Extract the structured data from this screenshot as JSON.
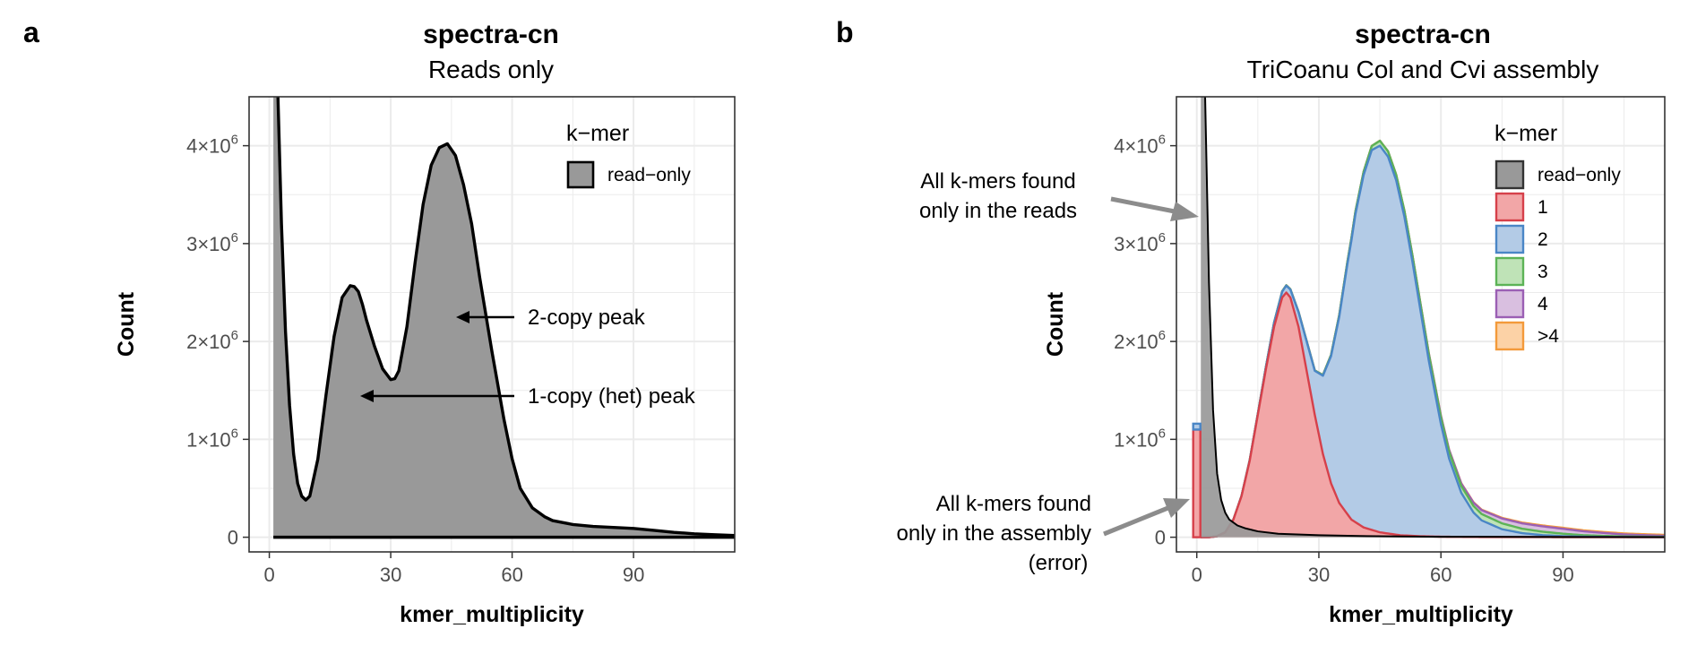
{
  "chart_data": [
    {
      "panel_letter": "a",
      "type": "area",
      "title": "spectra-cn",
      "subtitle": "Reads only",
      "xlabel": "kmer_multiplicity",
      "ylabel": "Count",
      "xlim": [
        -5,
        115
      ],
      "ylim": [
        -150000,
        4500000
      ],
      "x_ticks": [
        0,
        30,
        60,
        90
      ],
      "x_tick_labels": [
        "0",
        "30",
        "60",
        "90"
      ],
      "y_ticks": [
        0,
        1000000,
        2000000,
        3000000,
        4000000
      ],
      "y_tick_labels": [
        {
          "base": "0",
          "exp": ""
        },
        {
          "base": "1×10",
          "exp": "6"
        },
        {
          "base": "2×10",
          "exp": "6"
        },
        {
          "base": "3×10",
          "exp": "6"
        },
        {
          "base": "4×10",
          "exp": "6"
        }
      ],
      "grid": true,
      "legend": {
        "title": "k−mer",
        "position": "top-right",
        "entries": [
          {
            "label": "read−only",
            "color": "#999999"
          }
        ]
      },
      "series": [
        {
          "name": "read−only",
          "color": "#999999",
          "x": [
            1,
            2,
            3,
            4,
            5,
            6,
            7,
            8,
            9,
            10,
            12,
            14,
            16,
            18,
            20,
            21,
            22,
            23,
            24,
            26,
            28,
            30,
            31,
            32,
            34,
            36,
            38,
            40,
            42,
            44,
            46,
            48,
            50,
            52,
            55,
            58,
            60,
            62,
            65,
            68,
            70,
            75,
            80,
            85,
            90,
            95,
            100,
            105,
            110,
            115
          ],
          "values": [
            6000000,
            4700000,
            3200000,
            2100000,
            1350000,
            850000,
            550000,
            420000,
            380000,
            420000,
            800000,
            1450000,
            2050000,
            2450000,
            2570000,
            2560000,
            2510000,
            2380000,
            2220000,
            1950000,
            1720000,
            1610000,
            1620000,
            1700000,
            2150000,
            2800000,
            3400000,
            3800000,
            3980000,
            4020000,
            3900000,
            3600000,
            3200000,
            2650000,
            1900000,
            1200000,
            800000,
            500000,
            300000,
            210000,
            170000,
            130000,
            110000,
            100000,
            90000,
            70000,
            50000,
            35000,
            25000,
            18000
          ]
        }
      ],
      "annotations": [
        {
          "text": "2-copy peak",
          "x": 47,
          "y": 2250000
        },
        {
          "text": "1-copy (het) peak",
          "x": 23,
          "y": 1420000
        }
      ]
    },
    {
      "panel_letter": "b",
      "type": "area",
      "title": "spectra-cn",
      "subtitle": "TriCoanu Col and Cvi assembly",
      "xlabel": "kmer_multiplicity",
      "ylabel": "Count",
      "xlim": [
        -5,
        115
      ],
      "ylim": [
        -150000,
        4500000
      ],
      "x_ticks": [
        0,
        30,
        60,
        90
      ],
      "x_tick_labels": [
        "0",
        "30",
        "60",
        "90"
      ],
      "y_ticks": [
        0,
        1000000,
        2000000,
        3000000,
        4000000
      ],
      "y_tick_labels": [
        {
          "base": "0",
          "exp": ""
        },
        {
          "base": "1×10",
          "exp": "6"
        },
        {
          "base": "2×10",
          "exp": "6"
        },
        {
          "base": "3×10",
          "exp": "6"
        },
        {
          "base": "4×10",
          "exp": "6"
        }
      ],
      "grid": true,
      "legend": {
        "title": "k−mer",
        "position": "top-right",
        "entries": [
          {
            "label": "read−only",
            "fill": "#999999",
            "stroke": "#333333"
          },
          {
            "label": "1",
            "fill": "#f2a6a7",
            "stroke": "#d6404a"
          },
          {
            "label": "2",
            "fill": "#b3cbe6",
            "stroke": "#4a86c6"
          },
          {
            "label": "3",
            "fill": "#bfe3b7",
            "stroke": "#5cb356"
          },
          {
            "label": "4",
            "fill": "#d9bfe0",
            "stroke": "#9b5fb4"
          },
          {
            "label": ">4",
            "fill": "#fcd2a6",
            "stroke": "#f39a3a"
          }
        ]
      },
      "stack_order": [
        "read−only",
        "1",
        "2",
        "3",
        "4",
        ">4"
      ],
      "series": [
        {
          "name": "read−only",
          "color": "#999999",
          "x": [
            1,
            2,
            3,
            4,
            5,
            6,
            7,
            8,
            10,
            12,
            15,
            20,
            30,
            40,
            50,
            60,
            70,
            80,
            90,
            100,
            115
          ],
          "values": [
            6000000,
            4600000,
            2600000,
            1300000,
            650000,
            380000,
            250000,
            180000,
            120000,
            90000,
            60000,
            35000,
            20000,
            12000,
            8000,
            5000,
            4000,
            3000,
            2500,
            2000,
            1500
          ]
        },
        {
          "name": "1",
          "color": "#d6404a",
          "x": [
            1,
            3,
            5,
            7,
            9,
            11,
            13,
            15,
            17,
            19,
            21,
            22,
            23,
            25,
            27,
            29,
            31,
            33,
            35,
            38,
            41,
            45,
            50,
            55,
            60,
            70,
            80,
            90,
            100,
            115
          ],
          "values": [
            0,
            0,
            10000,
            50000,
            180000,
            420000,
            780000,
            1250000,
            1720000,
            2150000,
            2450000,
            2500000,
            2450000,
            2150000,
            1700000,
            1250000,
            850000,
            550000,
            350000,
            180000,
            100000,
            50000,
            20000,
            10000,
            5000,
            2000,
            1500,
            1000,
            500,
            200
          ]
        },
        {
          "name": "2",
          "color": "#4a86c6",
          "x": [
            1,
            5,
            10,
            15,
            17,
            19,
            21,
            22,
            23,
            25,
            27,
            29,
            31,
            33,
            35,
            37,
            39,
            41,
            43,
            45,
            47,
            49,
            51,
            53,
            55,
            57,
            60,
            62,
            65,
            68,
            70,
            75,
            80,
            85,
            90,
            95,
            100,
            105,
            110,
            115
          ],
          "values": [
            0,
            0,
            0,
            8000,
            20000,
            40000,
            60000,
            70000,
            80000,
            150000,
            300000,
            450000,
            800000,
            1300000,
            1900000,
            2550000,
            3150000,
            3600000,
            3880000,
            3950000,
            3850000,
            3620000,
            3260000,
            2800000,
            2300000,
            1800000,
            1150000,
            800000,
            450000,
            250000,
            170000,
            80000,
            40000,
            20000,
            10000,
            5000,
            3000,
            2000,
            1500,
            1000
          ]
        },
        {
          "name": "3",
          "color": "#5cb356",
          "x": [
            1,
            30,
            40,
            45,
            50,
            55,
            60,
            65,
            70,
            75,
            80,
            85,
            90,
            95,
            100,
            105,
            110,
            115
          ],
          "values": [
            0,
            5000,
            30000,
            50000,
            60000,
            65000,
            70000,
            70000,
            65000,
            60000,
            45000,
            35000,
            25000,
            15000,
            10000,
            6000,
            4000,
            3000
          ]
        },
        {
          "name": "4",
          "color": "#9b5fb4",
          "x": [
            1,
            50,
            55,
            60,
            65,
            70,
            75,
            80,
            85,
            90,
            95,
            100,
            105,
            110,
            115
          ],
          "values": [
            0,
            0,
            5000,
            15000,
            25000,
            40000,
            50000,
            55000,
            55000,
            50000,
            40000,
            30000,
            20000,
            15000,
            10000
          ]
        },
        {
          "name": ">4",
          "color": "#f39a3a",
          "x": [
            1,
            60,
            70,
            80,
            90,
            100,
            110,
            115
          ],
          "values": [
            0,
            2000,
            5000,
            8000,
            10000,
            10000,
            10000,
            10000
          ]
        }
      ],
      "zero_bars": [
        {
          "name": "1",
          "x": 0,
          "value": 1100000
        },
        {
          "name": "2",
          "x": 0,
          "value": 60000
        }
      ],
      "annotations": [
        {
          "lines": [
            "All k-mers found",
            "only in the reads"
          ]
        },
        {
          "lines": [
            "All k-mers found",
            "only in the assembly",
            "(error)"
          ]
        }
      ]
    }
  ]
}
